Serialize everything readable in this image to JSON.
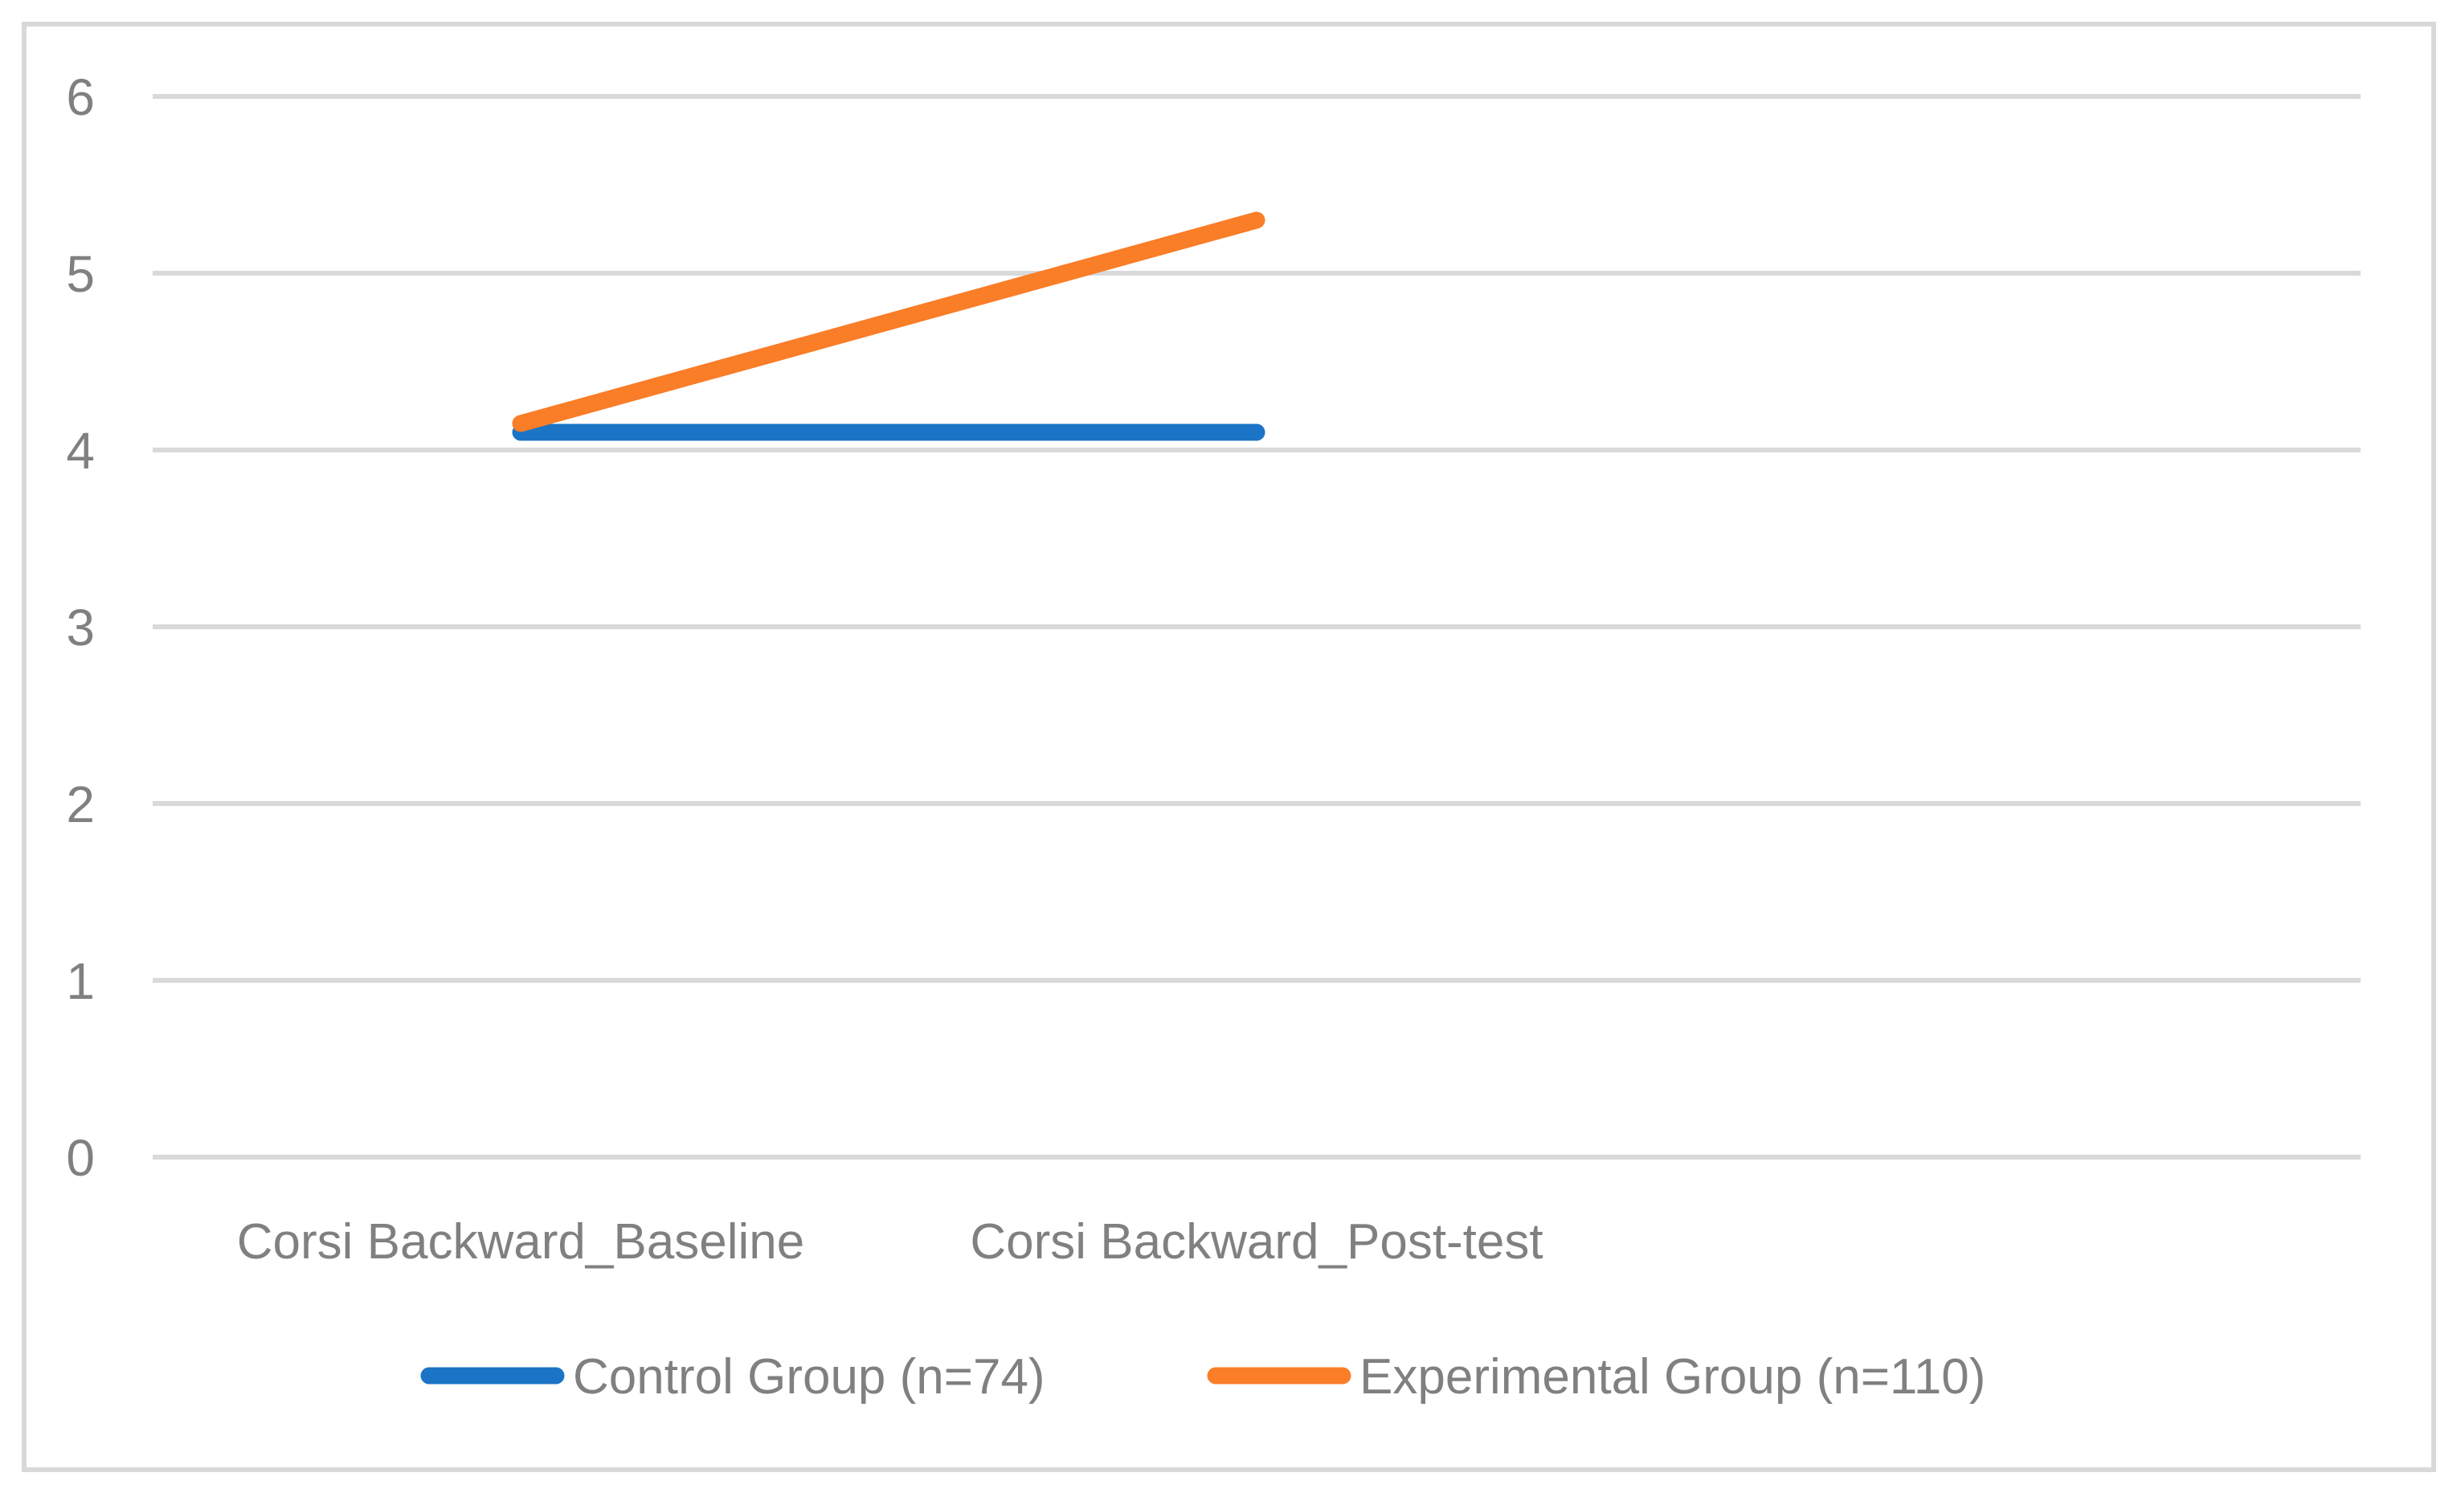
{
  "chart_data": {
    "type": "line",
    "title": "",
    "xlabel": "",
    "ylabel": "",
    "categories": [
      "Corsi Backward_Baseline",
      "Corsi Backward_Post-test"
    ],
    "series": [
      {
        "name": "Control Group (n=74)",
        "color": "#1B74C5",
        "values": [
          4.1,
          4.1
        ]
      },
      {
        "name": "Experimental Group (n=110)",
        "color": "#FA7D28",
        "values": [
          4.15,
          5.3
        ]
      }
    ],
    "ylim": [
      0,
      6
    ],
    "yticks": [
      0,
      1,
      2,
      3,
      4,
      5,
      6
    ],
    "grid": true,
    "legend_position": "bottom",
    "num_category_slots": 3
  },
  "colors": {
    "background": "#FFFFFF",
    "grid": "#D9D9D9",
    "border": "#D9D9D9",
    "text": "#808080"
  }
}
